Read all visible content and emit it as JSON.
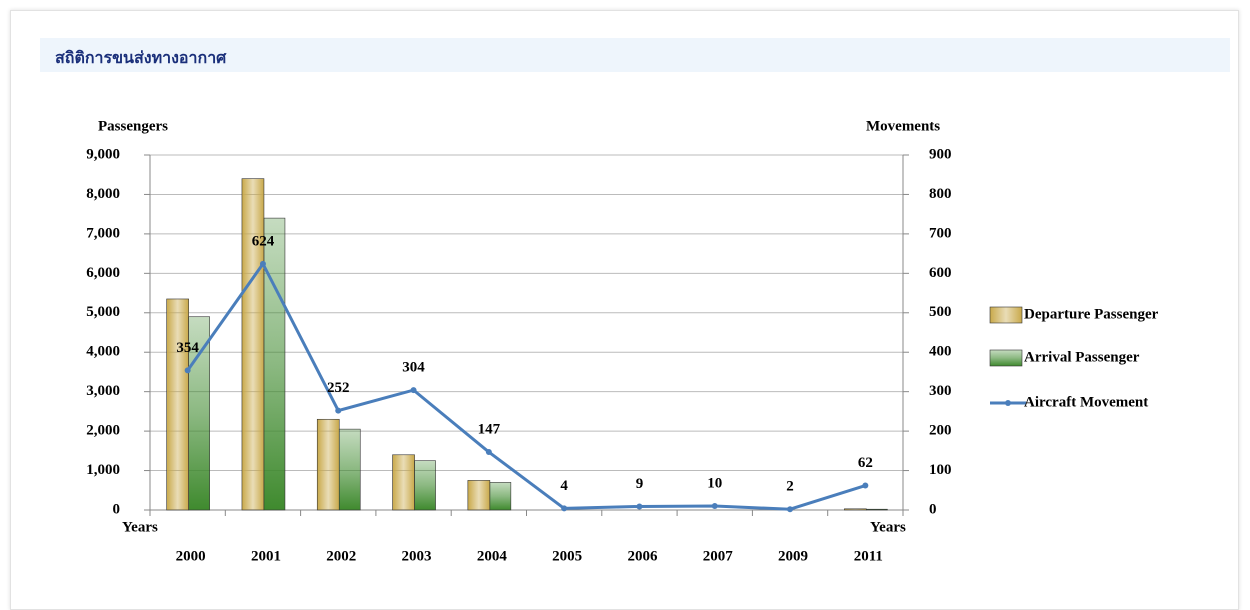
{
  "page_title": "สถิติการขนส่งทางอากาศ",
  "chart_data": {
    "type": "bar",
    "y_label": "Passengers",
    "y2_label": "Movements",
    "x_label": "Years",
    "categories": [
      "2000",
      "2001",
      "2002",
      "2003",
      "2004",
      "2005",
      "2006",
      "2007",
      "2009",
      "2011"
    ],
    "series": [
      {
        "name": "Departure Passenger",
        "color": "#c9a94a",
        "values": [
          5350,
          8400,
          2300,
          1400,
          750,
          0,
          0,
          0,
          0,
          30
        ]
      },
      {
        "name": "Arrival Passenger",
        "color": "#3f8a2e",
        "values": [
          4900,
          7400,
          2050,
          1250,
          700,
          0,
          0,
          0,
          0,
          20
        ]
      },
      {
        "name": "Aircraft Movement",
        "color": "#4a7ebb",
        "type": "line",
        "axis": "y2",
        "values": [
          354,
          624,
          252,
          304,
          147,
          4,
          9,
          10,
          2,
          62
        ]
      }
    ],
    "ylim": [
      0,
      9000
    ],
    "yticks": [
      0,
      {
        "value": 1000,
        "label": "1,000"
      },
      {
        "value": 2000,
        "label": "2,000"
      },
      {
        "value": 3000,
        "label": "3,000"
      },
      {
        "value": 4000,
        "label": "4,000"
      },
      {
        "value": 5000,
        "label": "5,000"
      },
      {
        "value": 6000,
        "label": "6,000"
      },
      {
        "value": 7000,
        "label": "7,000"
      },
      {
        "value": 8000,
        "label": "8,000"
      },
      {
        "value": 9000,
        "label": "9,000"
      }
    ],
    "y2lim": [
      0,
      900
    ],
    "y2ticks": [
      0,
      100,
      200,
      300,
      400,
      500,
      600,
      700,
      800,
      900
    ],
    "grid": true,
    "legend": "right",
    "data_labels": true
  }
}
